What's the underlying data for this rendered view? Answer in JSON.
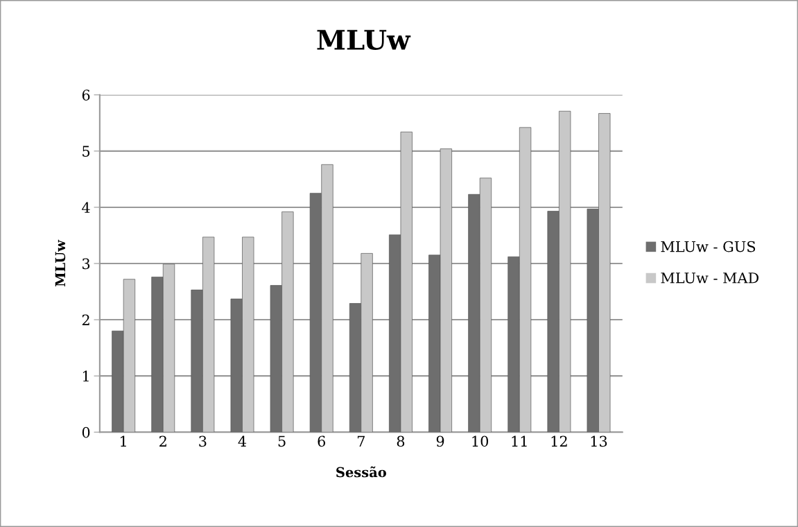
{
  "chart_data": {
    "type": "bar",
    "title": "MLUw",
    "xlabel": "Sessão",
    "ylabel": "MLUw",
    "categories": [
      "1",
      "2",
      "3",
      "4",
      "5",
      "6",
      "7",
      "8",
      "9",
      "10",
      "11",
      "12",
      "13"
    ],
    "series": [
      {
        "name": "MLUw - GUS",
        "color": "#6e6e6e",
        "values": [
          1.8,
          2.76,
          2.53,
          2.37,
          2.61,
          4.25,
          2.29,
          3.51,
          3.15,
          4.23,
          3.12,
          3.93,
          3.97
        ]
      },
      {
        "name": "MLUw - MAD",
        "color": "#c8c8c8",
        "values": [
          2.72,
          2.99,
          3.47,
          3.47,
          3.92,
          4.76,
          3.18,
          5.34,
          5.04,
          4.52,
          5.42,
          5.71,
          5.67
        ]
      }
    ],
    "ylim": [
      0,
      6
    ],
    "yticks": [
      0,
      1,
      2,
      3,
      4,
      5,
      6
    ],
    "grid": "y",
    "legend": "right"
  }
}
